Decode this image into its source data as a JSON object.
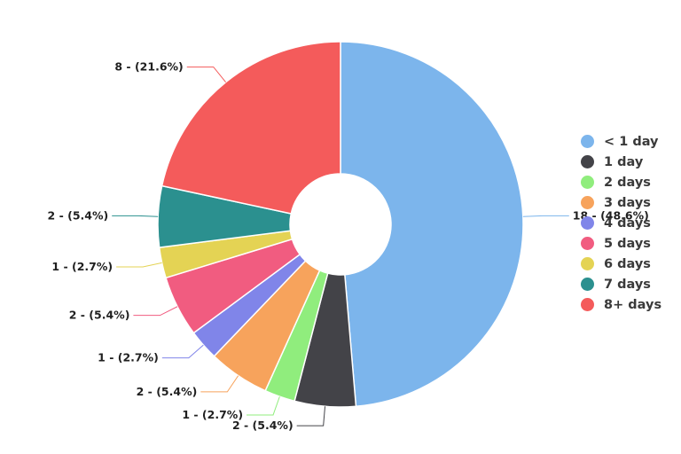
{
  "chart_data": {
    "type": "pie",
    "donut": true,
    "title": "",
    "total": 37,
    "slices": [
      {
        "label": "< 1 day",
        "value": 18,
        "percent": 48.6,
        "color": "#7cb5ec",
        "data_label": "18 - (48.6%)"
      },
      {
        "label": "1 day",
        "value": 2,
        "percent": 5.4,
        "color": "#434348",
        "data_label": "2 - (5.4%)"
      },
      {
        "label": "2 days",
        "value": 1,
        "percent": 2.7,
        "color": "#90ed7d",
        "data_label": "1 - (2.7%)"
      },
      {
        "label": "3 days",
        "value": 2,
        "percent": 5.4,
        "color": "#f7a35c",
        "data_label": "2 - (5.4%)"
      },
      {
        "label": "4 days",
        "value": 1,
        "percent": 2.7,
        "color": "#8085e9",
        "data_label": "1 - (2.7%)"
      },
      {
        "label": "5 days",
        "value": 2,
        "percent": 5.4,
        "color": "#f15c80",
        "data_label": "2 - (5.4%)"
      },
      {
        "label": "6 days",
        "value": 1,
        "percent": 2.7,
        "color": "#e4d354",
        "data_label": "1 - (2.7%)"
      },
      {
        "label": "7 days",
        "value": 2,
        "percent": 5.4,
        "color": "#2b908f",
        "data_label": "2 - (5.4%)"
      },
      {
        "label": "8+ days",
        "value": 8,
        "percent": 21.6,
        "color": "#f45b5b",
        "data_label": "8 - (21.6%)"
      }
    ],
    "legend_position": "right"
  },
  "legend": {
    "items": [
      {
        "label": "< 1 day",
        "color": "#7cb5ec"
      },
      {
        "label": "1 day",
        "color": "#434348"
      },
      {
        "label": "2 days",
        "color": "#90ed7d"
      },
      {
        "label": "3 days",
        "color": "#f7a35c"
      },
      {
        "label": "4 days",
        "color": "#8085e9"
      },
      {
        "label": "5 days",
        "color": "#f15c80"
      },
      {
        "label": "6 days",
        "color": "#e4d354"
      },
      {
        "label": "7 days",
        "color": "#2b908f"
      },
      {
        "label": "8+ days",
        "color": "#f45b5b"
      }
    ]
  }
}
